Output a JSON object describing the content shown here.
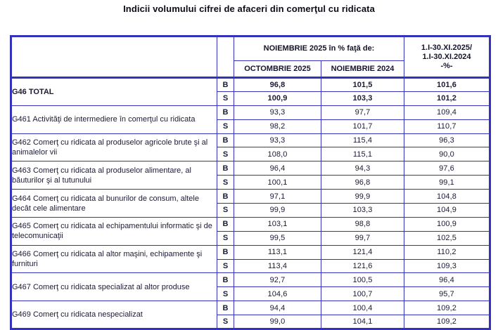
{
  "title": "Indicii volumului cifrei de afaceri din comerţul cu ridicata",
  "colors": {
    "border_blue": "#3232bb",
    "text": "#1b1b35",
    "title_text": "#0d0d1a"
  },
  "table": {
    "header": {
      "group_label": "NOIEMBRIE 2025 în % faţă de:",
      "sub_col1": "OCTOMBRIE 2025",
      "sub_col2": "NOIEMBRIE 2024",
      "cum_line1": "1.I-30.XI.2025/",
      "cum_line2": "1.I-30.XI.2024",
      "cum_line3": "-%-"
    },
    "series_labels": {
      "b": "B",
      "s": "S"
    },
    "rows": [
      {
        "name": "G46 TOTAL",
        "bold": true,
        "b": [
          "96,8",
          "101,5",
          "101,6"
        ],
        "s": [
          "100,9",
          "103,3",
          "101,2"
        ]
      },
      {
        "name": "G461 Activităţi de intermediere în comerţul cu ridicata",
        "bold": false,
        "b": [
          "93,3",
          "97,7",
          "109,4"
        ],
        "s": [
          "98,2",
          "101,7",
          "110,7"
        ]
      },
      {
        "name": "G462 Comerţ cu ridicata al produselor agricole brute şi al animalelor vii",
        "bold": false,
        "b": [
          "93,3",
          "115,4",
          "96,3"
        ],
        "s": [
          "108,0",
          "115,1",
          "90,0"
        ]
      },
      {
        "name": "G463 Comerţ cu ridicata al produselor alimentare, al băuturilor şi al tutunului",
        "bold": false,
        "b": [
          "96,4",
          "94,3",
          "97,6"
        ],
        "s": [
          "100,1",
          "96,8",
          "99,1"
        ]
      },
      {
        "name": "G464 Comerţ cu ridicata al bunurilor de consum, altele decât cele alimentare",
        "bold": false,
        "b": [
          "97,1",
          "99,9",
          "104,8"
        ],
        "s": [
          "99,9",
          "103,3",
          "104,9"
        ]
      },
      {
        "name": "G465 Comerţ cu ridicata al echipamentului informatic şi de telecomunicaţii",
        "bold": false,
        "b": [
          "103,1",
          "98,8",
          "100,9"
        ],
        "s": [
          "99,5",
          "99,7",
          "102,5"
        ]
      },
      {
        "name": "G466 Comerţ cu ridicata al altor maşini, echipamente şi furnituri",
        "bold": false,
        "b": [
          "113,1",
          "121,4",
          "110,2"
        ],
        "s": [
          "113,4",
          "121,6",
          "109,3"
        ]
      },
      {
        "name": "G467 Comerţ cu ridicata specializat al altor produse",
        "bold": false,
        "b": [
          "92,7",
          "100,5",
          "96,4"
        ],
        "s": [
          "104,6",
          "100,7",
          "95,7"
        ]
      },
      {
        "name": "G469 Comerţ cu ridicata nespecializat",
        "bold": false,
        "b": [
          "94,4",
          "100,4",
          "109,2"
        ],
        "s": [
          "99,0",
          "104,1",
          "109,2"
        ]
      }
    ]
  }
}
